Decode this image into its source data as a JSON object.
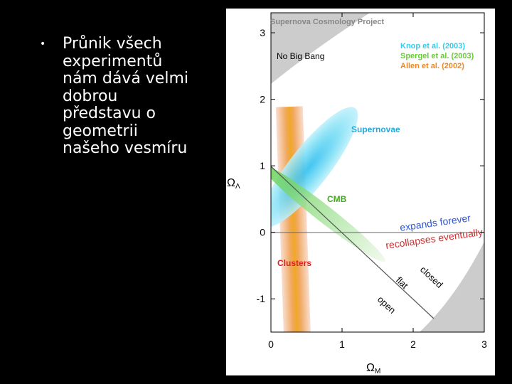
{
  "slide": {
    "bullet_lines": [
      "Průnik všech",
      "experimentů",
      "nám dává velmi",
      "dobrou",
      "představu o",
      "geometrii",
      "našeho vesmíru"
    ]
  },
  "figure": {
    "title": "Supernova Cosmology Project",
    "legend": [
      {
        "name": "Knop et al. (2003)",
        "color": "#33ccee"
      },
      {
        "name": "Spergel et al. (2003)",
        "color": "#66cc33"
      },
      {
        "name": "Allen et al. (2002)",
        "color": "#ee8822"
      }
    ],
    "xlabel": {
      "symbol": "Ω",
      "sub": "M"
    },
    "ylabel": {
      "symbol": "Ω",
      "sub": "Λ"
    },
    "xlim": [
      0,
      3
    ],
    "ylim": [
      -1.5,
      3.3
    ],
    "xticks": [
      0,
      1,
      2,
      3
    ],
    "yticks": [
      -1,
      0,
      1,
      2,
      3
    ],
    "annotations": {
      "no_big_bang": "No Big Bang",
      "supernovae": "Supernovae",
      "cmb": "CMB",
      "clusters": "Clusters",
      "expands": "expands forever",
      "recollapses": "recollapses eventually",
      "closed": "closed",
      "flat": "flat",
      "open": "open"
    }
  }
}
